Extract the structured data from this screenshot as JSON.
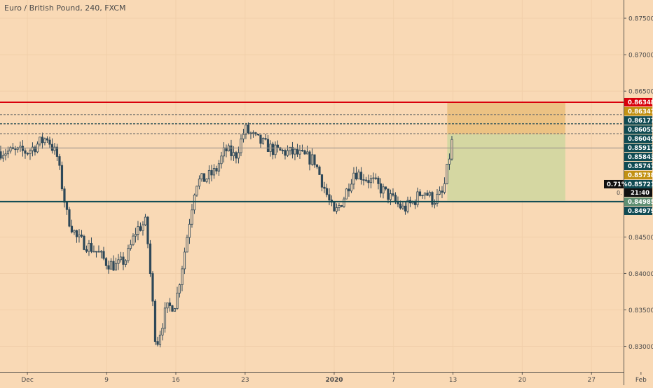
{
  "chart_data": {
    "type": "candlestick",
    "title": "Euro / British Pound, 240, FXCM",
    "ylim": [
      0.8265,
      0.8775
    ],
    "y_ticks": [
      "0.87500",
      "0.87000",
      "0.86500",
      "0.84500",
      "0.84000",
      "0.83500",
      "0.83000"
    ],
    "x_ticks": [
      "Dec",
      "9",
      "16",
      "23",
      "2020",
      "7",
      "13",
      "20",
      "27",
      "Feb"
    ],
    "close_points": [
      {
        "date": "Dec 1",
        "value": 0.8567
      },
      {
        "date": "Dec 3",
        "value": 0.8587
      },
      {
        "date": "Dec 4",
        "value": 0.856
      },
      {
        "date": "Dec 5",
        "value": 0.848
      },
      {
        "date": "Dec 6",
        "value": 0.8448
      },
      {
        "date": "Dec 8",
        "value": 0.843
      },
      {
        "date": "Dec 9",
        "value": 0.8415
      },
      {
        "date": "Dec 10",
        "value": 0.841
      },
      {
        "date": "Dec 11",
        "value": 0.842
      },
      {
        "date": "Dec 12",
        "value": 0.846
      },
      {
        "date": "Dec 13",
        "value": 0.847
      },
      {
        "date": "Dec 14",
        "value": 0.83
      },
      {
        "date": "Dec 15",
        "value": 0.835
      },
      {
        "date": "Dec 16",
        "value": 0.836
      },
      {
        "date": "Dec 17",
        "value": 0.844
      },
      {
        "date": "Dec 18",
        "value": 0.8525
      },
      {
        "date": "Dec 19",
        "value": 0.853
      },
      {
        "date": "Dec 20",
        "value": 0.854
      },
      {
        "date": "Dec 21",
        "value": 0.857
      },
      {
        "date": "Dec 22",
        "value": 0.856
      },
      {
        "date": "Dec 23",
        "value": 0.8598
      },
      {
        "date": "Dec 24",
        "value": 0.8585
      },
      {
        "date": "Dec 26",
        "value": 0.8568
      },
      {
        "date": "Dec 28",
        "value": 0.8565
      },
      {
        "date": "Dec 30",
        "value": 0.8555
      },
      {
        "date": "Jan 1",
        "value": 0.848
      },
      {
        "date": "Jan 2",
        "value": 0.8505
      },
      {
        "date": "Jan 3",
        "value": 0.854
      },
      {
        "date": "Jan 5",
        "value": 0.8525
      },
      {
        "date": "Jan 7",
        "value": 0.85
      },
      {
        "date": "Jan 8",
        "value": 0.8488
      },
      {
        "date": "Jan 9",
        "value": 0.8498
      },
      {
        "date": "Jan 10",
        "value": 0.8515
      },
      {
        "date": "Jan 11",
        "value": 0.85
      },
      {
        "date": "Jan 12",
        "value": 0.851
      },
      {
        "date": "Jan 13",
        "value": 0.8588
      }
    ],
    "horizontal_levels": [
      {
        "label": "0.86348",
        "value": 0.86348,
        "line": "solid",
        "line_color": "#d8000c",
        "tag_color": "#d8000c"
      },
      {
        "label": "0.86347",
        "value": 0.86347,
        "line": "none",
        "line_color": "#d8000c",
        "tag_color": "#c29113"
      },
      {
        "label": "0.86177",
        "value": 0.86177,
        "line": "dashed",
        "line_color": "#78756f",
        "tag_color": "#0f4a52"
      },
      {
        "label": "0.86055",
        "value": 0.86055,
        "line": "dashed",
        "line_color": "#0f4a52",
        "tag_color": "#0f4a52"
      },
      {
        "label": "0.86049",
        "value": 0.86049,
        "line": "dashed",
        "line_color": "#78756f",
        "tag_color": "#0f4a52"
      },
      {
        "label": "0.85917",
        "value": 0.85917,
        "line": "dashed",
        "line_color": "#78756f",
        "tag_color": "#0f4a52"
      },
      {
        "label": "0.85843",
        "value": 0.85843,
        "line": "none",
        "line_color": "#78756f",
        "tag_color": "#0f4a52"
      },
      {
        "label": "0.85747",
        "value": 0.85747,
        "line": "none",
        "line_color": "#78756f",
        "tag_color": "#0f4a52"
      },
      {
        "label": "0.85738",
        "value": 0.85738,
        "line": "none",
        "line_color": "#78756f",
        "tag_color": "#c29113"
      },
      {
        "label": "0.85721",
        "value": 0.85721,
        "line": "thin",
        "line_color": "#9a928a",
        "tag_color": "#0f4a52"
      },
      {
        "label": "0.84985",
        "value": 0.84985,
        "line": "solid",
        "line_color": "#0f4a52",
        "tag_color": "#5e8f72"
      },
      {
        "label": "0.84979",
        "value": 0.84979,
        "line": "none",
        "line_color": "#0f4a52",
        "tag_color": "#0f4a52"
      }
    ],
    "extra_tags": {
      "percent": "0.71%",
      "countdown": "21:40",
      "stub": "0."
    },
    "position": {
      "entry": 0.8591,
      "target": 0.85,
      "stop": 0.8634,
      "start_date": "Jan 12",
      "end_date": "Jan 24",
      "profit_color": "#d5d7a2",
      "risk_color": "#ecc283"
    },
    "colors": {
      "background": "#f9d9b5",
      "candle": "#2f4858",
      "axis_text": "#4a4a4a",
      "grid": "#f1cfaa"
    }
  }
}
